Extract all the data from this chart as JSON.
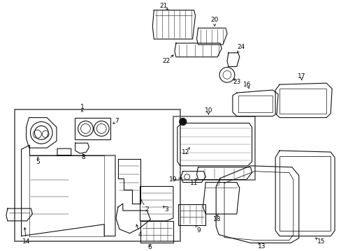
{
  "background_color": "#ffffff",
  "fig_width": 4.89,
  "fig_height": 3.6,
  "dpi": 100,
  "label_fontsize": 6.5,
  "line_color": "#111111",
  "lw": 0.8
}
